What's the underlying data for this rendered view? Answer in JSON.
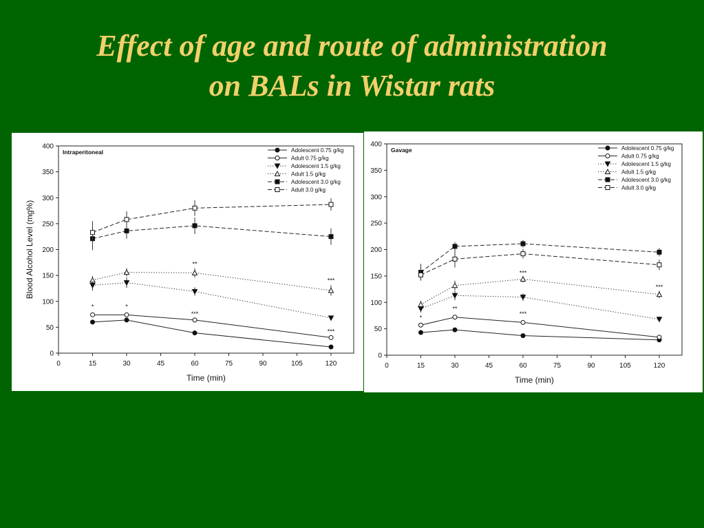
{
  "slide": {
    "title_line1": "Effect of age and route of administration",
    "title_line2": "on BALs in Wistar rats"
  },
  "colors": {
    "background": "#006400",
    "title": "#f2d06b",
    "panel": "#ffffff"
  },
  "chart_data": [
    {
      "type": "line",
      "panel_label": "Intraperitoneal",
      "xlabel": "Time (min)",
      "ylabel": "Blood Alcohol Level (mg%)",
      "xlim": [
        0,
        130
      ],
      "ylim": [
        0,
        400
      ],
      "xticks": [
        0,
        15,
        30,
        45,
        60,
        75,
        90,
        105,
        120
      ],
      "yticks": [
        0,
        50,
        100,
        150,
        200,
        250,
        300,
        350,
        400
      ],
      "legend_position": "top-right",
      "x": [
        15,
        30,
        60,
        120
      ],
      "series": [
        {
          "name": "Adolescent 0.75 g/kg",
          "values": [
            60,
            64,
            39,
            12
          ],
          "errors": [
            3,
            3,
            3,
            2
          ],
          "marker": "circle-filled",
          "dash": "solid"
        },
        {
          "name": "Adult 0.75 g/kg",
          "values": [
            74,
            74,
            64,
            30
          ],
          "errors": [
            3,
            3,
            4,
            3
          ],
          "marker": "circle-open",
          "dash": "solid"
        },
        {
          "name": "Adolescent 1.5 g/kg",
          "values": [
            131,
            136,
            119,
            68
          ],
          "errors": [
            10,
            10,
            8,
            3
          ],
          "marker": "triangle-down-filled",
          "dash": "dotted"
        },
        {
          "name": "Adult 1.5 g/kg",
          "values": [
            141,
            156,
            155,
            121
          ],
          "errors": [
            8,
            8,
            9,
            10
          ],
          "marker": "triangle-up-open",
          "dash": "dotted"
        },
        {
          "name": "Adolescent 3.0 g/kg",
          "values": [
            221,
            236,
            246,
            225
          ],
          "errors": [
            22,
            15,
            16,
            16
          ],
          "marker": "square-filled",
          "dash": "dashed"
        },
        {
          "name": "Adult 3.0 g/kg",
          "values": [
            233,
            258,
            280,
            287
          ],
          "errors": [
            22,
            16,
            15,
            12
          ],
          "marker": "square-open",
          "dash": "dashed"
        }
      ],
      "annotations": [
        {
          "x": 15,
          "y": 86,
          "text": "*"
        },
        {
          "x": 30,
          "y": 86,
          "text": "*"
        },
        {
          "x": 60,
          "y": 168,
          "text": "**"
        },
        {
          "x": 60,
          "y": 72,
          "text": "***"
        },
        {
          "x": 120,
          "y": 136,
          "text": "***"
        },
        {
          "x": 120,
          "y": 38,
          "text": "***"
        }
      ]
    },
    {
      "type": "line",
      "panel_label": "Gavage",
      "xlabel": "Time (min)",
      "ylabel": "",
      "xlim": [
        0,
        130
      ],
      "ylim": [
        0,
        400
      ],
      "xticks": [
        0,
        15,
        30,
        45,
        60,
        75,
        90,
        105,
        120
      ],
      "yticks": [
        0,
        50,
        100,
        150,
        200,
        250,
        300,
        350,
        400
      ],
      "legend_position": "top-right",
      "x": [
        15,
        30,
        60,
        120
      ],
      "series": [
        {
          "name": "Adolescent 0.75 g/kg",
          "values": [
            43,
            48,
            37,
            29
          ],
          "errors": [
            2,
            2,
            2,
            2
          ],
          "marker": "circle-filled",
          "dash": "solid"
        },
        {
          "name": "Adult 0.75 g/kg",
          "values": [
            57,
            72,
            62,
            34
          ],
          "errors": [
            3,
            3,
            3,
            2
          ],
          "marker": "circle-open",
          "dash": "solid"
        },
        {
          "name": "Adolescent 1.5 g/kg",
          "values": [
            88,
            113,
            110,
            68
          ],
          "errors": [
            7,
            9,
            7,
            5
          ],
          "marker": "triangle-down-filled",
          "dash": "dotted"
        },
        {
          "name": "Adult 1.5 g/kg",
          "values": [
            96,
            132,
            144,
            115
          ],
          "errors": [
            7,
            9,
            6,
            7
          ],
          "marker": "triangle-up-open",
          "dash": "dotted"
        },
        {
          "name": "Adolescent 3.0 g/kg",
          "values": [
            157,
            206,
            211,
            195
          ],
          "errors": [
            16,
            8,
            7,
            8
          ],
          "marker": "square-filled",
          "dash": "dashed"
        },
        {
          "name": "Adult 3.0 g/kg",
          "values": [
            152,
            182,
            192,
            171
          ],
          "errors": [
            10,
            16,
            9,
            10
          ],
          "marker": "square-open",
          "dash": "dashed"
        }
      ],
      "annotations": [
        {
          "x": 15,
          "y": 67,
          "text": "*"
        },
        {
          "x": 30,
          "y": 84,
          "text": "**"
        },
        {
          "x": 60,
          "y": 74,
          "text": "***"
        },
        {
          "x": 60,
          "y": 152,
          "text": "***"
        },
        {
          "x": 120,
          "y": 125,
          "text": "***"
        }
      ]
    }
  ]
}
